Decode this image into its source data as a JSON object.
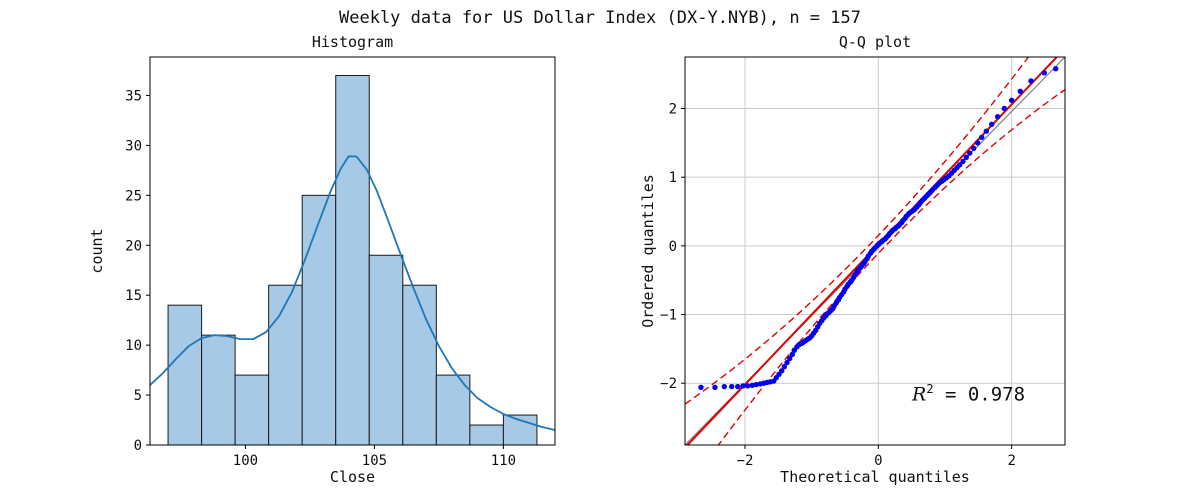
{
  "figure": {
    "suptitle": "Weekly data for US Dollar Index (DX-Y.NYB), n = 157",
    "background": "#ffffff"
  },
  "chart_data": [
    {
      "id": "histogram",
      "type": "bar",
      "title": "Histogram",
      "xlabel": "Close",
      "ylabel": "count",
      "xlim": [
        96.3,
        112.0
      ],
      "ylim": [
        0,
        38.85
      ],
      "xtick_vals": [
        100,
        105,
        110
      ],
      "xtick_labels": [
        "100",
        "105",
        "110"
      ],
      "ytick_vals": [
        0,
        5,
        10,
        15,
        20,
        25,
        30,
        35
      ],
      "ytick_labels": [
        "0",
        "5",
        "10",
        "15",
        "20",
        "25",
        "30",
        "35"
      ],
      "grid": false,
      "bin_edges": [
        97.0,
        98.3,
        99.6,
        100.9,
        102.2,
        103.5,
        104.8,
        106.1,
        107.4,
        108.7,
        110.0,
        111.3
      ],
      "counts": [
        14,
        11,
        7,
        16,
        25,
        37,
        19,
        16,
        7,
        2,
        3
      ],
      "bar_fill": "#a6c9e6",
      "bar_edge": "#1a1a1a",
      "kde_color": "#1f77b4",
      "kde_points": [
        [
          96.3,
          6.0
        ],
        [
          96.8,
          7.2
        ],
        [
          97.3,
          8.6
        ],
        [
          97.8,
          9.9
        ],
        [
          98.3,
          10.7
        ],
        [
          98.8,
          11.0
        ],
        [
          99.3,
          10.9
        ],
        [
          99.8,
          10.6
        ],
        [
          100.3,
          10.6
        ],
        [
          100.8,
          11.3
        ],
        [
          101.3,
          12.9
        ],
        [
          101.8,
          15.3
        ],
        [
          102.3,
          18.5
        ],
        [
          102.8,
          22.0
        ],
        [
          103.3,
          25.4
        ],
        [
          103.7,
          27.7
        ],
        [
          104.0,
          28.9
        ],
        [
          104.3,
          28.9
        ],
        [
          104.7,
          27.6
        ],
        [
          105.1,
          25.4
        ],
        [
          105.5,
          22.7
        ],
        [
          106.0,
          19.2
        ],
        [
          106.5,
          15.8
        ],
        [
          107.0,
          12.6
        ],
        [
          107.5,
          9.9
        ],
        [
          108.0,
          7.7
        ],
        [
          108.5,
          6.0
        ],
        [
          109.0,
          4.7
        ],
        [
          109.5,
          3.8
        ],
        [
          110.0,
          3.1
        ],
        [
          110.5,
          2.6
        ],
        [
          111.0,
          2.2
        ],
        [
          111.5,
          1.8
        ],
        [
          112.0,
          1.5
        ]
      ]
    },
    {
      "id": "qq",
      "type": "scatter",
      "title": "Q-Q plot",
      "xlabel": "Theoretical quantiles",
      "ylabel": "Ordered quantiles",
      "xlim": [
        -2.9,
        2.8
      ],
      "ylim": [
        -2.9,
        2.75
      ],
      "xtick_vals": [
        -2,
        0,
        2
      ],
      "xtick_labels": [
        "−2",
        "0",
        "2"
      ],
      "ytick_vals": [
        -2,
        -1,
        0,
        1,
        2
      ],
      "ytick_labels": [
        "−2",
        "−1",
        "0",
        "1",
        "2"
      ],
      "grid": true,
      "grid_color": "#cccccc",
      "point_color": "#0000ee",
      "identity_line_color": "#808080",
      "fit_line": {
        "slope": 1.02,
        "intercept": 0.02,
        "color": "#e00000"
      },
      "band": {
        "c0": 0.13,
        "c2": 0.06,
        "color": "#e00000"
      },
      "annotation": {
        "var": "R",
        "sup": "2",
        "rest": " = 0.978"
      },
      "points": [
        [
          -2.66,
          -2.06
        ],
        [
          -2.45,
          -2.06
        ],
        [
          -2.31,
          -2.05
        ],
        [
          -2.2,
          -2.05
        ],
        [
          -2.11,
          -2.05
        ],
        [
          -2.03,
          -2.04
        ],
        [
          -1.96,
          -2.04
        ],
        [
          -1.89,
          -2.03
        ],
        [
          -1.83,
          -2.02
        ],
        [
          -1.77,
          -2.01
        ],
        [
          -1.72,
          -2.0
        ],
        [
          -1.67,
          -1.99
        ],
        [
          -1.62,
          -1.98
        ],
        [
          -1.57,
          -1.97
        ],
        [
          -1.53,
          -1.92
        ],
        [
          -1.49,
          -1.87
        ],
        [
          -1.45,
          -1.82
        ],
        [
          -1.41,
          -1.76
        ],
        [
          -1.37,
          -1.7
        ],
        [
          -1.33,
          -1.64
        ],
        [
          -1.29,
          -1.58
        ],
        [
          -1.26,
          -1.52
        ],
        [
          -1.22,
          -1.47
        ],
        [
          -1.19,
          -1.44
        ],
        [
          -1.15,
          -1.42
        ],
        [
          -1.12,
          -1.4
        ],
        [
          -1.09,
          -1.38
        ],
        [
          -1.06,
          -1.36
        ],
        [
          -1.03,
          -1.34
        ],
        [
          -1.0,
          -1.31
        ],
        [
          -0.97,
          -1.27
        ],
        [
          -0.94,
          -1.23
        ],
        [
          -0.91,
          -1.18
        ],
        [
          -0.88,
          -1.13
        ],
        [
          -0.85,
          -1.09
        ],
        [
          -0.82,
          -1.05
        ],
        [
          -0.79,
          -1.02
        ],
        [
          -0.77,
          -0.99
        ],
        [
          -0.74,
          -0.97
        ],
        [
          -0.71,
          -0.94
        ],
        [
          -0.68,
          -0.91
        ],
        [
          -0.66,
          -0.87
        ],
        [
          -0.63,
          -0.83
        ],
        [
          -0.6,
          -0.79
        ],
        [
          -0.58,
          -0.75
        ],
        [
          -0.55,
          -0.71
        ],
        [
          -0.52,
          -0.67
        ],
        [
          -0.5,
          -0.63
        ],
        [
          -0.47,
          -0.59
        ],
        [
          -0.45,
          -0.56
        ],
        [
          -0.42,
          -0.53
        ],
        [
          -0.4,
          -0.5
        ],
        [
          -0.37,
          -0.46
        ],
        [
          -0.35,
          -0.42
        ],
        [
          -0.32,
          -0.38
        ],
        [
          -0.3,
          -0.35
        ],
        [
          -0.27,
          -0.32
        ],
        [
          -0.25,
          -0.29
        ],
        [
          -0.22,
          -0.26
        ],
        [
          -0.2,
          -0.23
        ],
        [
          -0.17,
          -0.19
        ],
        [
          -0.15,
          -0.15
        ],
        [
          -0.12,
          -0.11
        ],
        [
          -0.1,
          -0.08
        ],
        [
          -0.07,
          -0.05
        ],
        [
          -0.05,
          -0.03
        ],
        [
          -0.02,
          0.0
        ],
        [
          0.0,
          0.02
        ],
        [
          0.02,
          0.04
        ],
        [
          0.05,
          0.06
        ],
        [
          0.07,
          0.08
        ],
        [
          0.1,
          0.1
        ],
        [
          0.12,
          0.12
        ],
        [
          0.15,
          0.15
        ],
        [
          0.17,
          0.18
        ],
        [
          0.2,
          0.21
        ],
        [
          0.22,
          0.23
        ],
        [
          0.25,
          0.25
        ],
        [
          0.27,
          0.27
        ],
        [
          0.3,
          0.29
        ],
        [
          0.32,
          0.31
        ],
        [
          0.35,
          0.34
        ],
        [
          0.37,
          0.37
        ],
        [
          0.4,
          0.4
        ],
        [
          0.42,
          0.43
        ],
        [
          0.45,
          0.46
        ],
        [
          0.47,
          0.48
        ],
        [
          0.5,
          0.5
        ],
        [
          0.53,
          0.52
        ],
        [
          0.55,
          0.54
        ],
        [
          0.58,
          0.57
        ],
        [
          0.61,
          0.6
        ],
        [
          0.63,
          0.63
        ],
        [
          0.66,
          0.66
        ],
        [
          0.69,
          0.69
        ],
        [
          0.72,
          0.72
        ],
        [
          0.75,
          0.75
        ],
        [
          0.78,
          0.78
        ],
        [
          0.81,
          0.81
        ],
        [
          0.85,
          0.85
        ],
        [
          0.88,
          0.88
        ],
        [
          0.91,
          0.91
        ],
        [
          0.95,
          0.94
        ],
        [
          0.98,
          0.96
        ],
        [
          1.02,
          0.99
        ],
        [
          1.06,
          1.02
        ],
        [
          1.1,
          1.06
        ],
        [
          1.14,
          1.1
        ],
        [
          1.18,
          1.14
        ],
        [
          1.22,
          1.18
        ],
        [
          1.27,
          1.23
        ],
        [
          1.32,
          1.29
        ],
        [
          1.37,
          1.35
        ],
        [
          1.43,
          1.42
        ],
        [
          1.49,
          1.5
        ],
        [
          1.55,
          1.58
        ],
        [
          1.62,
          1.67
        ],
        [
          1.7,
          1.77
        ],
        [
          1.79,
          1.88
        ],
        [
          1.89,
          2.0
        ],
        [
          2.0,
          2.12
        ],
        [
          2.13,
          2.25
        ],
        [
          2.29,
          2.4
        ],
        [
          2.49,
          2.52
        ],
        [
          2.66,
          2.58
        ]
      ]
    }
  ]
}
